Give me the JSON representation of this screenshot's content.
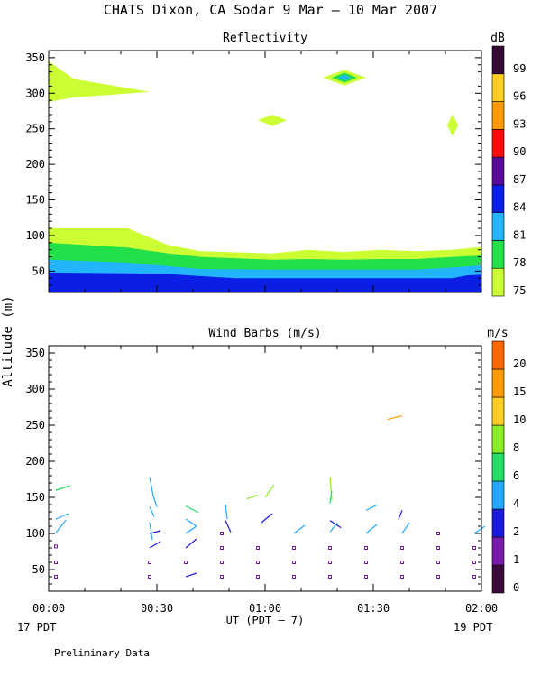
{
  "title": "CHATS Dixon, CA  Sodar   9 Mar – 10 Mar 2007",
  "ylabel": "Altitude (m)",
  "xlabel": "UT  (PDT – 7)",
  "start_label": "17 PDT",
  "end_label": "19 PDT",
  "footnote": "Preliminary Data",
  "x_ticks": [
    "00:00",
    "00:30",
    "01:00",
    "01:30",
    "02:00"
  ],
  "colors": {
    "reflectivity": [
      "#ccff33",
      "#22e04a",
      "#22b4ff",
      "#0a1ee6",
      "#5a0a9a",
      "#ff0a0a",
      "#ff9900",
      "#ffcc22",
      "#330a33"
    ],
    "wind": [
      "#3a0a3a",
      "#7a1aaa",
      "#1a1adf",
      "#22a8ff",
      "#22dd66",
      "#88ee22",
      "#ffcc22",
      "#ff9900",
      "#ff6600",
      "#ff0a0a"
    ]
  },
  "chart_data": [
    {
      "type": "heatmap",
      "title": "Reflectivity",
      "ylim": [
        20,
        360
      ],
      "xlim": [
        0,
        120
      ],
      "x_unit": "minutes after 00:00 UT",
      "y_ticks": [
        50,
        100,
        150,
        200,
        250,
        300,
        350
      ],
      "colorbar": {
        "unit": "dB",
        "levels": [
          75,
          78,
          81,
          84,
          87,
          90,
          93,
          96,
          99
        ]
      },
      "layers": [
        {
          "level": 75,
          "x": [
            0,
            22,
            33,
            42,
            62,
            72,
            82,
            92,
            102,
            112,
            120
          ],
          "y_top": [
            110,
            110,
            87,
            78,
            75,
            80,
            77,
            80,
            78,
            80,
            84
          ]
        },
        {
          "level": 78,
          "x": [
            0,
            22,
            33,
            42,
            62,
            72,
            82,
            92,
            102,
            112,
            120
          ],
          "y_top": [
            90,
            83,
            75,
            70,
            66,
            67,
            66,
            67,
            67,
            70,
            72
          ]
        },
        {
          "level": 81,
          "x": [
            0,
            22,
            33,
            42,
            62,
            72,
            82,
            92,
            102,
            112,
            120
          ],
          "y_top": [
            66,
            62,
            57,
            53,
            52,
            52,
            52,
            52,
            52,
            55,
            58
          ]
        },
        {
          "level": 84,
          "x": [
            0,
            22,
            33,
            42,
            52,
            112,
            116,
            120
          ],
          "y_top": [
            48,
            47,
            46,
            43,
            40,
            40,
            44,
            45
          ]
        }
      ],
      "patches": [
        {
          "level": 75,
          "shape": "wedge",
          "points": [
            [
              0,
              345
            ],
            [
              7,
              320
            ],
            [
              28,
              302
            ],
            [
              7,
              294
            ],
            [
              0,
              288
            ]
          ]
        },
        {
          "level": 75,
          "shape": "blob",
          "cx": 62,
          "cy": 262,
          "rx": 4,
          "ry": 8
        },
        {
          "level": 75,
          "shape": "blob",
          "cx": 112,
          "cy": 255,
          "rx": 1.5,
          "ry": 16
        },
        {
          "level": 75,
          "shape": "blob",
          "cx": 82,
          "cy": 322,
          "rx": 6,
          "ry": 11
        },
        {
          "level": 78,
          "shape": "blob",
          "cx": 82,
          "cy": 322,
          "rx": 3.5,
          "ry": 7
        },
        {
          "level": 81,
          "shape": "blob",
          "cx": 82,
          "cy": 322,
          "rx": 1.8,
          "ry": 4
        }
      ]
    },
    {
      "type": "scatter",
      "title": "Wind Barbs (m/s)",
      "ylim": [
        20,
        360
      ],
      "xlim": [
        0,
        120
      ],
      "x_unit": "minutes after 00:00 UT",
      "y_ticks": [
        50,
        100,
        150,
        200,
        250,
        300,
        350
      ],
      "colorbar": {
        "unit": "m/s",
        "levels": [
          0,
          1,
          2,
          4,
          6,
          8,
          10,
          15,
          20
        ]
      },
      "barbs": [
        {
          "x": 2,
          "y": 160,
          "dx": 16,
          "dy": 5,
          "level": 4
        },
        {
          "x": 2,
          "y": 120,
          "dx": 14,
          "dy": 6,
          "level": 3
        },
        {
          "x": 2,
          "y": 101,
          "dx": 11,
          "dy": 14,
          "level": 3
        },
        {
          "x": 2,
          "y": 82,
          "level": 1,
          "calm": true
        },
        {
          "x": 2,
          "y": 60,
          "level": 1,
          "calm": true
        },
        {
          "x": 2,
          "y": 40,
          "level": 1,
          "calm": true
        },
        {
          "x": 28,
          "y": 178,
          "dx": 4,
          "dy": -21,
          "level": 3
        },
        {
          "x": 29,
          "y": 152,
          "dx": 4,
          "dy": -12,
          "level": 3
        },
        {
          "x": 28,
          "y": 137,
          "dx": 5,
          "dy": -11,
          "level": 3
        },
        {
          "x": 28,
          "y": 115,
          "dx": 3,
          "dy": -19,
          "level": 3
        },
        {
          "x": 28,
          "y": 100,
          "dx": 12,
          "dy": 3,
          "level": 2
        },
        {
          "x": 28,
          "y": 80,
          "dx": 12,
          "dy": 7,
          "level": 2
        },
        {
          "x": 28,
          "y": 60,
          "level": 1,
          "calm": true
        },
        {
          "x": 28,
          "y": 40,
          "level": 1,
          "calm": true
        },
        {
          "x": 38,
          "y": 138,
          "dx": 14,
          "dy": -7,
          "level": 4
        },
        {
          "x": 38,
          "y": 120,
          "dx": 12,
          "dy": -8,
          "level": 3
        },
        {
          "x": 38,
          "y": 100,
          "dx": 12,
          "dy": 8,
          "level": 3
        },
        {
          "x": 38,
          "y": 80,
          "dx": 12,
          "dy": 10,
          "level": 2
        },
        {
          "x": 38,
          "y": 60,
          "level": 1,
          "calm": true
        },
        {
          "x": 38,
          "y": 40,
          "dx": 12,
          "dy": 4,
          "level": 2
        },
        {
          "x": 49,
          "y": 140,
          "dx": 2,
          "dy": -16,
          "level": 3
        },
        {
          "x": 49,
          "y": 118,
          "dx": 6,
          "dy": -13,
          "level": 2
        },
        {
          "x": 48,
          "y": 100,
          "level": 1,
          "calm": true
        },
        {
          "x": 48,
          "y": 80,
          "level": 1,
          "calm": true
        },
        {
          "x": 48,
          "y": 60,
          "level": 1,
          "calm": true
        },
        {
          "x": 48,
          "y": 40,
          "level": 1,
          "calm": true
        },
        {
          "x": 55,
          "y": 148,
          "dx": 12,
          "dy": 4,
          "level": 5
        },
        {
          "x": 60,
          "y": 150,
          "dx": 10,
          "dy": 14,
          "level": 5
        },
        {
          "x": 59,
          "y": 115,
          "dx": 12,
          "dy": 10,
          "level": 2
        },
        {
          "x": 58,
          "y": 80,
          "level": 1,
          "calm": true
        },
        {
          "x": 58,
          "y": 60,
          "level": 1,
          "calm": true
        },
        {
          "x": 58,
          "y": 40,
          "level": 1,
          "calm": true
        },
        {
          "x": 68,
          "y": 100,
          "dx": 12,
          "dy": 9,
          "level": 3
        },
        {
          "x": 68,
          "y": 80,
          "level": 1,
          "calm": true
        },
        {
          "x": 68,
          "y": 60,
          "level": 1,
          "calm": true
        },
        {
          "x": 68,
          "y": 40,
          "level": 1,
          "calm": true
        },
        {
          "x": 78,
          "y": 178,
          "dx": 2,
          "dy": -25,
          "level": 5
        },
        {
          "x": 78,
          "y": 142,
          "dx": 2,
          "dy": 14,
          "level": 4
        },
        {
          "x": 78,
          "y": 118,
          "dx": 12,
          "dy": -8,
          "level": 2
        },
        {
          "x": 78,
          "y": 102,
          "dx": 8,
          "dy": 10,
          "level": 3
        },
        {
          "x": 78,
          "y": 80,
          "level": 1,
          "calm": true
        },
        {
          "x": 78,
          "y": 60,
          "level": 1,
          "calm": true
        },
        {
          "x": 78,
          "y": 40,
          "level": 1,
          "calm": true
        },
        {
          "x": 88,
          "y": 132,
          "dx": 12,
          "dy": 6,
          "level": 3
        },
        {
          "x": 88,
          "y": 100,
          "dx": 12,
          "dy": 10,
          "level": 3
        },
        {
          "x": 88,
          "y": 80,
          "level": 1,
          "calm": true
        },
        {
          "x": 88,
          "y": 60,
          "level": 1,
          "calm": true
        },
        {
          "x": 88,
          "y": 40,
          "level": 1,
          "calm": true
        },
        {
          "x": 94,
          "y": 258,
          "dx": 16,
          "dy": 4,
          "level": 7
        },
        {
          "x": 98,
          "y": 132,
          "dx": -4,
          "dy": -10,
          "level": 2
        },
        {
          "x": 98,
          "y": 100,
          "dx": 8,
          "dy": 12,
          "level": 3
        },
        {
          "x": 98,
          "y": 80,
          "level": 1,
          "calm": true
        },
        {
          "x": 98,
          "y": 60,
          "level": 1,
          "calm": true
        },
        {
          "x": 98,
          "y": 40,
          "level": 1,
          "calm": true
        },
        {
          "x": 108,
          "y": 100,
          "level": 1,
          "calm": true
        },
        {
          "x": 108,
          "y": 80,
          "level": 1,
          "calm": true
        },
        {
          "x": 108,
          "y": 60,
          "level": 1,
          "calm": true
        },
        {
          "x": 108,
          "y": 40,
          "level": 1,
          "calm": true
        },
        {
          "x": 118,
          "y": 100,
          "dx": 12,
          "dy": 8,
          "level": 3
        },
        {
          "x": 118,
          "y": 80,
          "level": 1,
          "calm": true
        },
        {
          "x": 118,
          "y": 60,
          "level": 1,
          "calm": true
        },
        {
          "x": 118,
          "y": 40,
          "level": 1,
          "calm": true
        }
      ]
    }
  ]
}
